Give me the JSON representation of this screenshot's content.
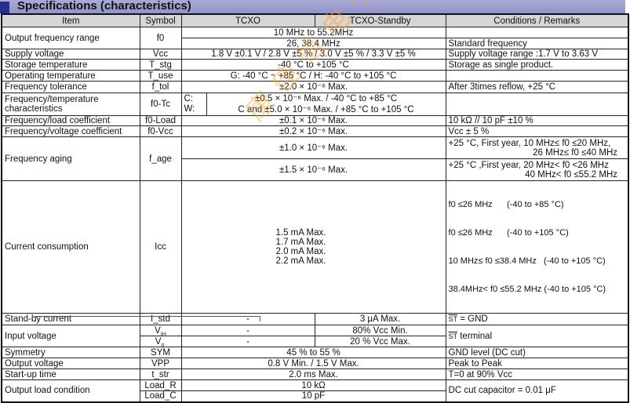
{
  "title": "Specifications (characteristics)",
  "headers": {
    "item": "Item",
    "symbol": "Symbol",
    "tcxo": "TCXO",
    "standby": "TCXO-Standby",
    "remarks": "Conditions / Remarks"
  },
  "rows": {
    "freq_range": {
      "item": "Output frequency range",
      "symbol": "f0",
      "value1": "10 MHz to 55.2MHz",
      "value2": "26, 38.4 MHz",
      "remark2": "Standard frequency"
    },
    "supply": {
      "item": "Supply voltage",
      "symbol": "Vcc",
      "value": "1.8 V ±0.1 V / 2.8 V ±5 % / 3.0 V ±5 % / 3.3 V ±5 %",
      "remark": "Supply voltage range :1.7 V to 3.63 V"
    },
    "storage": {
      "item": "Storage temperature",
      "symbol": "T_stg",
      "value": "-40 °C to +105 °C",
      "remark": "Storage as single product."
    },
    "operating": {
      "item": "Operating temperature",
      "symbol": "T_use",
      "value": "G: -40 °C ~ +85 °C / H: -40 °C to +105 °C"
    },
    "tolerance": {
      "item": "Frequency tolerance",
      "symbol": "f_tol",
      "value": "±2.0 × 10⁻⁶ Max.",
      "remark": "After 3times reflow, +25 °C"
    },
    "temp_char": {
      "item": "Frequency/temperature characteristics",
      "symbol": "f0-Tc",
      "c_label": "C:",
      "w_label": "W:",
      "c_value": "±0.5 × 10⁻⁶ Max. / -40 °C to +85 °C",
      "w_value": "C and ±5.0 × 10⁻⁶ Max. / +85 °C to +105 °C"
    },
    "load_coef": {
      "item": "Frequency/load coefficient",
      "symbol": "f0-Load",
      "value": "±0.1 × 10⁻⁶ Max.",
      "remark": "10 kΩ // 10 pF ±10 %"
    },
    "volt_coef": {
      "item": "Frequency/voltage coefficient",
      "symbol": "f0-Vcc",
      "value": "±0.2 × 10⁻⁶ Max.",
      "remark": "Vcc ± 5 %"
    },
    "aging": {
      "item": "Frequency aging",
      "symbol": "f_age",
      "value1": "±1.0 × 10⁻⁶ Max.",
      "remark1a": "+25 °C, First year, 10 MHz≤ f0 ≤20 MHz,",
      "remark1b": "26 MHz≤ f0 ≤40 MHz",
      "value2": "±1.5 × 10⁻⁶ Max.",
      "remark2a": "+25 °C ,First year, 20 MHz< f0 <26 MHz",
      "remark2b": "40 MHz< f0 ≤55.2 MHz"
    },
    "current": {
      "item": "Current consumption",
      "symbol": "Icc",
      "values": [
        "1.5 mA Max.",
        "1.7 mA Max.",
        "2.0 mA Max.",
        "2.2 mA Max."
      ],
      "remarks": [
        "f0 ≤26 MHz      (-40 to +85 °C)",
        "f0 ≤26 MHz      (-40 to +105 °C)",
        "10 MHz≤ f0 ≤38.4 MHz   (-40 to +105 °C)",
        "38.4MHz< f0 ≤55.2 MHz (-40 to +105 °C)"
      ]
    },
    "standby_current": {
      "item": "Stand-by current",
      "symbol": "I_std",
      "tcxo": "-",
      "standby": "3 μA Max.",
      "remark_st": "ST",
      "remark": "= GND"
    },
    "input_voltage": {
      "item": "Input voltage",
      "symbol_h": "V",
      "symbol_h_sub": "IH",
      "symbol_l": "V",
      "symbol_l_sub": "IL",
      "tcxo_h": "-",
      "tcxo_l": "-",
      "standby_h": "80% Vcc Min.",
      "standby_l": "20 % Vcc Max.",
      "remark_st": "ST",
      "remark": "terminal"
    },
    "symmetry": {
      "item": "Symmetry",
      "symbol": "SYM",
      "value": "45 % to 55 %",
      "remark": "GND level (DC cut)"
    },
    "output_voltage": {
      "item": "Output voltage",
      "symbol": "VPP",
      "value": "0.8 V Min. / 1.5 V Max.",
      "remark": "Peak to Peak"
    },
    "startup": {
      "item": "Start-up time",
      "symbol": "t_str",
      "value": "2.0 ms Max.",
      "remark": "T=0 at 90% Vcc"
    },
    "output_load": {
      "item": "Output load condition",
      "symbol_r": "Load_R",
      "symbol_c": "Load_C",
      "value_r": "10 kΩ",
      "value_c": "10 pF",
      "remark": "DC cut capacitor = 0.01 μF"
    }
  },
  "watermark": "康佳信电子",
  "colors": {
    "banner": "#9a9ccc",
    "banner_square": "#2c2e8c",
    "header_bg": "#d6d6d6",
    "watermark": "#ffa528"
  }
}
